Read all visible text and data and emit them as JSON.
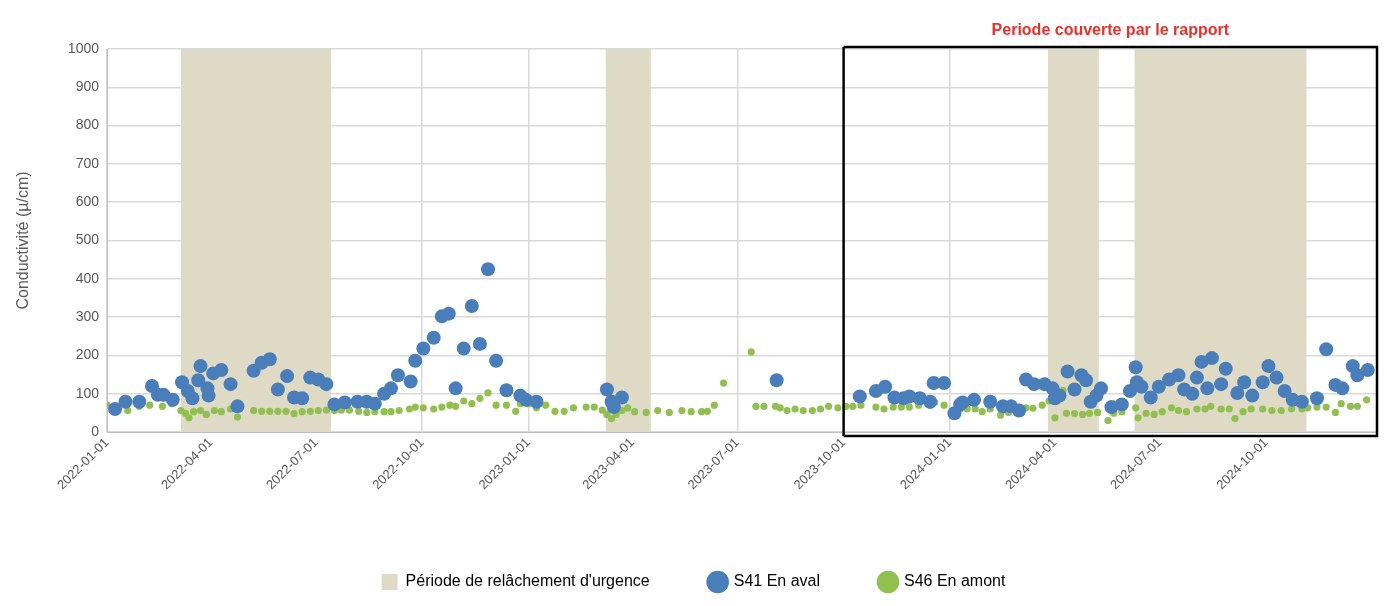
{
  "chart_data": {
    "type": "scatter",
    "ylabel": "Conductivité (µ/cm)",
    "xlim": [
      "2022-01-01",
      "2025-01-05"
    ],
    "xticks": [
      "2022-01-01",
      "2022-04-01",
      "2022-07-01",
      "2022-10-01",
      "2023-01-01",
      "2023-04-01",
      "2023-07-01",
      "2023-10-01",
      "2024-01-01",
      "2024-04-01",
      "2024-07-01",
      "2024-10-01"
    ],
    "ylim": [
      0,
      1000
    ],
    "yticks": [
      0,
      100,
      200,
      300,
      400,
      500,
      600,
      700,
      800,
      900,
      1000
    ],
    "grid": true,
    "legend": "bottom",
    "marker": "circle",
    "bands": [
      {
        "axis": "x",
        "from": "2022-03-06",
        "to": "2022-07-14",
        "label": "Période de relâchement d'urgence",
        "color": "#dedac6"
      },
      {
        "axis": "x",
        "from": "2023-03-09",
        "to": "2023-04-17",
        "color": "#dedac6"
      },
      {
        "axis": "x",
        "from": "2024-03-26",
        "to": "2024-05-09",
        "color": "#dedac6"
      },
      {
        "axis": "x",
        "from": "2024-06-09",
        "to": "2024-11-05",
        "color": "#dedac6"
      }
    ],
    "ref_lines": [
      {
        "axis": "x",
        "value": "2023-10-01",
        "color": "#000000"
      }
    ],
    "annotations": [
      "Periode couverte par le rapport"
    ],
    "series": [
      {
        "name": "S41 En aval",
        "color": "#4a7ebb",
        "x": [
          "2022-01-08",
          "2022-01-17",
          "2022-01-29",
          "2022-02-09",
          "2022-02-14",
          "2022-02-19",
          "2022-02-27",
          "2022-03-07",
          "2022-03-12",
          "2022-03-16",
          "2022-03-21",
          "2022-03-23",
          "2022-03-29",
          "2022-03-30",
          "2022-04-03",
          "2022-04-10",
          "2022-04-18",
          "2022-04-24",
          "2022-05-08",
          "2022-05-15",
          "2022-05-22",
          "2022-05-29",
          "2022-06-06",
          "2022-06-12",
          "2022-06-19",
          "2022-06-26",
          "2022-07-03",
          "2022-07-10",
          "2022-07-17",
          "2022-07-26",
          "2022-08-06",
          "2022-08-14",
          "2022-08-21",
          "2022-08-29",
          "2022-09-04",
          "2022-09-10",
          "2022-09-21",
          "2022-09-25",
          "2022-10-02",
          "2022-10-11",
          "2022-10-18",
          "2022-10-24",
          "2022-10-30",
          "2022-11-06",
          "2022-11-13",
          "2022-11-20",
          "2022-11-27",
          "2022-12-04",
          "2022-12-13",
          "2022-12-25",
          "2022-12-30",
          "2023-01-08",
          "2023-03-10",
          "2023-03-14",
          "2023-03-16",
          "2023-03-23",
          "2023-08-04",
          "2023-10-15",
          "2023-10-29",
          "2023-11-06",
          "2023-11-14",
          "2023-11-22",
          "2023-11-27",
          "2023-12-06",
          "2023-12-15",
          "2023-12-18",
          "2023-12-27",
          "2024-01-05",
          "2024-01-10",
          "2024-01-12",
          "2024-01-22",
          "2024-02-05",
          "2024-02-16",
          "2024-02-23",
          "2024-03-01",
          "2024-03-07",
          "2024-03-14",
          "2024-03-23",
          "2024-03-30",
          "2024-04-01",
          "2024-04-05",
          "2024-04-12",
          "2024-04-18",
          "2024-04-24",
          "2024-04-28",
          "2024-05-02",
          "2024-05-07",
          "2024-05-11",
          "2024-05-20",
          "2024-05-29",
          "2024-06-05",
          "2024-06-10",
          "2024-06-11",
          "2024-06-15",
          "2024-06-23",
          "2024-06-30",
          "2024-07-09",
          "2024-07-17",
          "2024-07-22",
          "2024-07-29",
          "2024-08-02",
          "2024-08-06",
          "2024-08-11",
          "2024-08-15",
          "2024-08-23",
          "2024-08-27",
          "2024-09-06",
          "2024-09-12",
          "2024-09-19",
          "2024-09-28",
          "2024-10-03",
          "2024-10-10",
          "2024-10-17",
          "2024-10-24",
          "2024-11-01",
          "2024-11-14",
          "2024-11-22",
          "2024-11-30",
          "2024-12-06",
          "2024-12-15",
          "2024-12-19",
          "2024-12-28"
        ],
        "values": [
          60,
          79,
          79,
          120,
          97,
          97,
          84,
          130,
          107,
          88,
          135,
          172,
          114,
          95,
          153,
          162,
          125,
          67,
          160,
          181,
          190,
          111,
          146,
          90,
          88,
          142,
          137,
          125,
          72,
          77,
          79,
          79,
          74,
          100,
          114,
          148,
          132,
          186,
          218,
          246,
          302,
          309,
          114,
          218,
          329,
          230,
          425,
          186,
          109,
          95,
          84,
          79,
          111,
          79,
          65,
          90,
          135,
          93,
          107,
          118,
          90,
          88,
          93,
          88,
          79,
          128,
          128,
          49,
          72,
          77,
          84,
          79,
          67,
          67,
          56,
          137,
          125,
          125,
          114,
          88,
          95,
          158,
          111,
          148,
          135,
          79,
          95,
          114,
          65,
          72,
          107,
          169,
          130,
          118,
          90,
          118,
          137,
          148,
          111,
          100,
          142,
          183,
          114,
          193,
          125,
          165,
          102,
          130,
          95,
          130,
          172,
          142,
          107,
          84,
          79,
          88,
          216,
          123,
          114,
          172,
          148,
          162
        ]
      },
      {
        "name": "S46 En amont",
        "color": "#92c050",
        "x": [
          "2022-01-01",
          "2022-01-19",
          "2022-01-29",
          "2022-02-07",
          "2022-02-18",
          "2022-02-26",
          "2022-03-06",
          "2022-03-10",
          "2022-03-13",
          "2022-03-17",
          "2022-03-23",
          "2022-03-28",
          "2022-04-04",
          "2022-04-10",
          "2022-04-18",
          "2022-04-24",
          "2022-05-08",
          "2022-05-15",
          "2022-05-22",
          "2022-05-29",
          "2022-06-05",
          "2022-06-12",
          "2022-06-19",
          "2022-06-26",
          "2022-07-03",
          "2022-07-10",
          "2022-07-17",
          "2022-07-23",
          "2022-07-30",
          "2022-08-07",
          "2022-08-14",
          "2022-08-21",
          "2022-08-29",
          "2022-09-04",
          "2022-09-11",
          "2022-09-20",
          "2022-09-25",
          "2022-10-02",
          "2022-10-11",
          "2022-10-18",
          "2022-10-25",
          "2022-10-30",
          "2022-11-06",
          "2022-11-13",
          "2022-11-20",
          "2022-11-27",
          "2022-12-04",
          "2022-12-13",
          "2022-12-21",
          "2022-12-25",
          "2023-01-01",
          "2023-01-08",
          "2023-01-16",
          "2023-01-24",
          "2023-02-01",
          "2023-02-09",
          "2023-02-20",
          "2023-02-27",
          "2023-03-06",
          "2023-03-10",
          "2023-03-14",
          "2023-03-18",
          "2023-03-23",
          "2023-03-28",
          "2023-04-03",
          "2023-04-13",
          "2023-04-23",
          "2023-05-03",
          "2023-05-14",
          "2023-05-22",
          "2023-05-31",
          "2023-06-05",
          "2023-06-11",
          "2023-06-19",
          "2023-07-13",
          "2023-07-17",
          "2023-07-24",
          "2023-08-03",
          "2023-08-07",
          "2023-08-13",
          "2023-08-20",
          "2023-08-27",
          "2023-09-04",
          "2023-09-11",
          "2023-09-18",
          "2023-09-26",
          "2023-10-03",
          "2023-10-09",
          "2023-10-16",
          "2023-10-29",
          "2023-11-05",
          "2023-11-13",
          "2023-11-20",
          "2023-11-27",
          "2023-12-05",
          "2023-12-15",
          "2023-12-19",
          "2023-12-27",
          "2024-01-10",
          "2024-01-16",
          "2024-01-23",
          "2024-01-29",
          "2024-02-05",
          "2024-02-14",
          "2024-02-21",
          "2024-03-07",
          "2024-03-13",
          "2024-03-21",
          "2024-03-27",
          "2024-04-01",
          "2024-04-08",
          "2024-04-11",
          "2024-04-18",
          "2024-04-25",
          "2024-05-01",
          "2024-05-08",
          "2024-05-17",
          "2024-05-22",
          "2024-05-29",
          "2024-06-10",
          "2024-06-12",
          "2024-06-19",
          "2024-06-26",
          "2024-07-03",
          "2024-07-11",
          "2024-07-17",
          "2024-07-24",
          "2024-08-02",
          "2024-08-09",
          "2024-08-14",
          "2024-08-23",
          "2024-08-30",
          "2024-09-04",
          "2024-09-11",
          "2024-09-18",
          "2024-09-28",
          "2024-10-06",
          "2024-10-14",
          "2024-10-23",
          "2024-11-01",
          "2024-11-06",
          "2024-11-14",
          "2024-11-22",
          "2024-11-30",
          "2024-12-05",
          "2024-12-13",
          "2024-12-19",
          "2024-12-27"
        ],
        "values": [
          70,
          56,
          67,
          70,
          67,
          74,
          56,
          49,
          37,
          53,
          56,
          46,
          56,
          53,
          60,
          39,
          56,
          54,
          54,
          54,
          54,
          48,
          53,
          54,
          56,
          57,
          56,
          57,
          57,
          54,
          51,
          53,
          53,
          53,
          56,
          60,
          65,
          63,
          60,
          65,
          70,
          67,
          81,
          74,
          88,
          102,
          70,
          70,
          54,
          74,
          74,
          63,
          70,
          54,
          54,
          63,
          65,
          65,
          57,
          46,
          35,
          46,
          56,
          63,
          53,
          51,
          56,
          51,
          56,
          53,
          53,
          54,
          70,
          128,
          209,
          67,
          67,
          67,
          63,
          56,
          60,
          56,
          56,
          60,
          67,
          63,
          67,
          67,
          70,
          65,
          60,
          65,
          65,
          65,
          70,
          70,
          77,
          70,
          60,
          60,
          60,
          53,
          60,
          44,
          51,
          63,
          62,
          70,
          81,
          37,
          109,
          49,
          48,
          46,
          49,
          51,
          30,
          49,
          53,
          63,
          37,
          49,
          46,
          53,
          63,
          56,
          53,
          60,
          60,
          67,
          60,
          60,
          35,
          53,
          60,
          60,
          56,
          56,
          60,
          60,
          63,
          65,
          65,
          51,
          74,
          67,
          67,
          84
        ]
      }
    ]
  }
}
